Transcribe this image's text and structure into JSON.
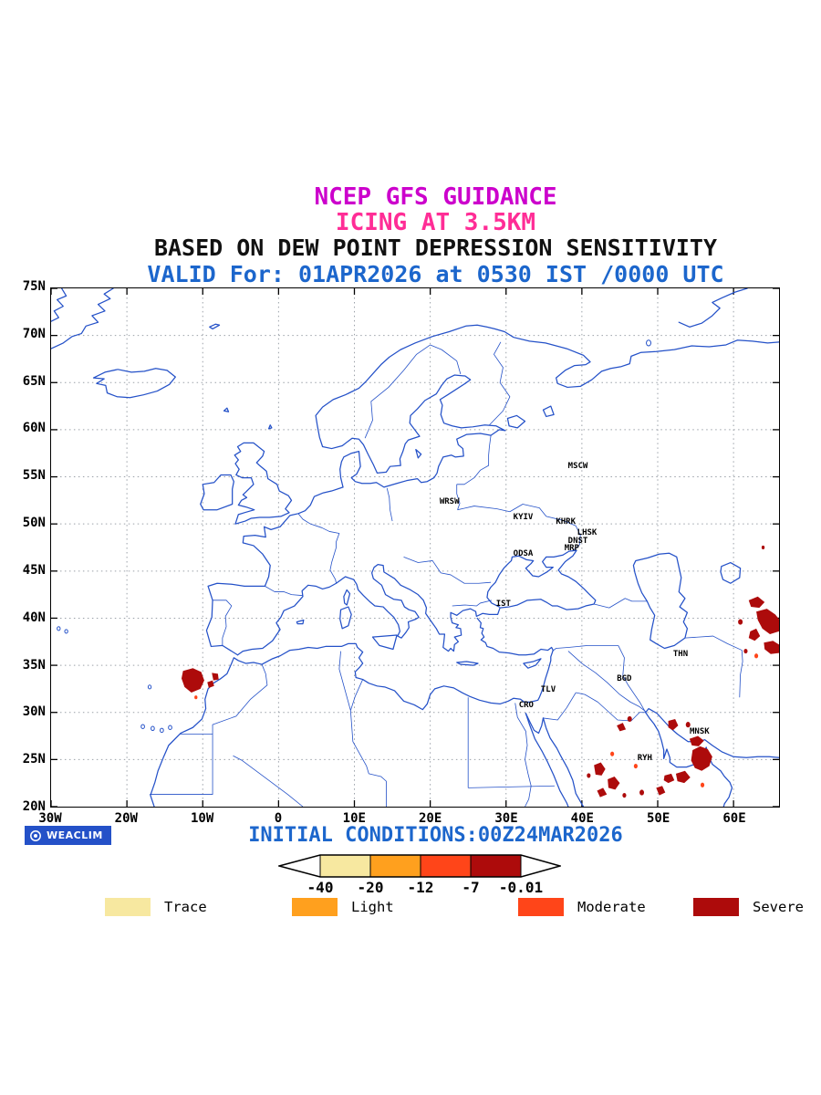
{
  "colors": {
    "map-blue": "#2451c8",
    "text-blue": "#1c66cc",
    "magenta": "#cc00cc",
    "pink": "#ff2d96",
    "severe": "#ad0b0b",
    "moderate": "#ff4519",
    "grid": "#9aa0a8"
  },
  "header": {
    "line1": "NCEP GFS GUIDANCE",
    "line2": "ICING AT 3.5KM",
    "line3": "BASED ON DEW POINT DEPRESSION SENSITIVITY",
    "line4": "VALID For: 01APR2026 at 0530 IST /0000 UTC"
  },
  "branding": {
    "label": "WEACLIM"
  },
  "footer": {
    "initial_conditions": "INITIAL CONDITIONS:00Z24MAR2026"
  },
  "map": {
    "x_ticks": [
      {
        "label": "30W",
        "lon": -30
      },
      {
        "label": "20W",
        "lon": -20
      },
      {
        "label": "10W",
        "lon": -10
      },
      {
        "label": "0",
        "lon": 0
      },
      {
        "label": "10E",
        "lon": 10
      },
      {
        "label": "20E",
        "lon": 20
      },
      {
        "label": "30E",
        "lon": 30
      },
      {
        "label": "40E",
        "lon": 40
      },
      {
        "label": "50E",
        "lon": 50
      },
      {
        "label": "60E",
        "lon": 60
      }
    ],
    "y_ticks": [
      {
        "label": "75N",
        "lat": 75
      },
      {
        "label": "70N",
        "lat": 70
      },
      {
        "label": "65N",
        "lat": 65
      },
      {
        "label": "60N",
        "lat": 60
      },
      {
        "label": "55N",
        "lat": 55
      },
      {
        "label": "50N",
        "lat": 50
      },
      {
        "label": "45N",
        "lat": 45
      },
      {
        "label": "40N",
        "lat": 40
      },
      {
        "label": "35N",
        "lat": 35
      },
      {
        "label": "30N",
        "lat": 30
      },
      {
        "label": "25N",
        "lat": 25
      },
      {
        "label": "20N",
        "lat": 20
      }
    ],
    "cities": [
      {
        "label": "MSCW",
        "lon": 39.3,
        "lat": 56.2
      },
      {
        "label": "WRSW",
        "lon": 22.4,
        "lat": 52.4
      },
      {
        "label": "KYIV",
        "lon": 32.1,
        "lat": 50.8
      },
      {
        "label": "KHRK",
        "lon": 37.7,
        "lat": 50.3
      },
      {
        "label": "LHSK",
        "lon": 40.5,
        "lat": 49.1
      },
      {
        "label": "DNST",
        "lon": 39.3,
        "lat": 48.3
      },
      {
        "label": "MRP",
        "lon": 38.5,
        "lat": 47.5
      },
      {
        "label": "ODSA",
        "lon": 32.1,
        "lat": 46.9
      },
      {
        "label": "IST",
        "lon": 29.5,
        "lat": 41.6
      },
      {
        "label": "THN",
        "lon": 52.8,
        "lat": 36.3
      },
      {
        "label": "BGD",
        "lon": 45.4,
        "lat": 33.7
      },
      {
        "label": "TLV",
        "lon": 35.4,
        "lat": 32.5
      },
      {
        "label": "CRO",
        "lon": 32.5,
        "lat": 30.9
      },
      {
        "label": "MNSK",
        "lon": 55.3,
        "lat": 28.1
      },
      {
        "label": "RYH",
        "lon": 48.1,
        "lat": 25.3
      }
    ],
    "icing_regions": [
      {
        "area": "Atlantic coast of Morocco",
        "severity": "Severe"
      },
      {
        "area": "East of Caspian Sea / Central Asia",
        "severity": "Severe"
      },
      {
        "area": "Arabian Peninsula, Red Sea and Persian Gulf coasts",
        "severity": "Severe"
      }
    ]
  },
  "colorbar": {
    "values": [
      "-40",
      "-20",
      "-12",
      "-7",
      "-0.01"
    ],
    "colors": [
      "#f7e8a0",
      "#ffa01e",
      "#ff4519",
      "#ad0b0b"
    ]
  },
  "legend": {
    "items": [
      {
        "label": "Trace",
        "color": "#f7e8a0"
      },
      {
        "label": "Light",
        "color": "#ffa01e"
      },
      {
        "label": "Moderate",
        "color": "#ff4519"
      },
      {
        "label": "Severe",
        "color": "#ad0b0b"
      }
    ]
  }
}
